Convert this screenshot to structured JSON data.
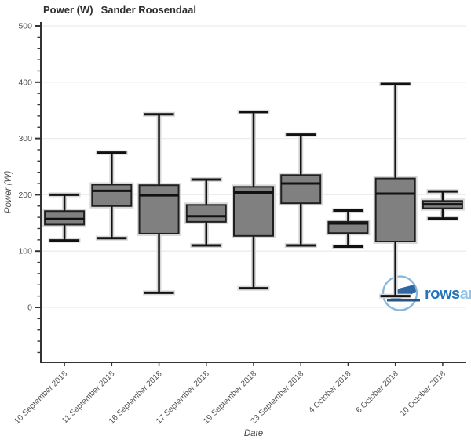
{
  "header": {
    "title_metric": "Power (W)",
    "title_name": "Sander Roosendaal"
  },
  "watermark": {
    "text_bold": "rows",
    "text_light": "an",
    "bold_color": "#1c6cb4",
    "light_color": "#8fc1e9",
    "ring_color": "#7fb3dd",
    "boat_color": "#235f9d",
    "keel_color": "#1b4a7a"
  },
  "chart_data": {
    "type": "box",
    "title": "Power (W)  Sander Roosendaal",
    "xlabel": "Date",
    "ylabel": "Power (W)",
    "ylim": [
      -97.5,
      507
    ],
    "yticks_major": [
      0,
      100,
      200,
      300,
      400,
      500
    ],
    "ytick_minor_step": 20,
    "grid": "horizontal-major",
    "legend": "none",
    "box_fill": "#808080",
    "box_border": "#1f1f1f",
    "whisker_color": "#111111",
    "halo_color": "#d8d8d8",
    "gridline_color": "#ececec",
    "spine_color": "#333333",
    "categories": [
      "10 September 2018",
      "11 September 2018",
      "16 September 2018",
      "17 September 2018",
      "19 September 2018",
      "23 September 2018",
      "4 October 2018",
      "6 October 2018",
      "10 October 2018"
    ],
    "series": [
      {
        "name": "Power (W)",
        "boxes": [
          {
            "low": 119,
            "q1": 147,
            "median": 157,
            "q3": 171,
            "high": 200
          },
          {
            "low": 123,
            "q1": 180,
            "median": 207,
            "q3": 218,
            "high": 275
          },
          {
            "low": 26,
            "q1": 131,
            "median": 199,
            "q3": 217,
            "high": 343
          },
          {
            "low": 110,
            "q1": 152,
            "median": 162,
            "q3": 182,
            "high": 227
          },
          {
            "low": 34,
            "q1": 127,
            "median": 204,
            "q3": 214,
            "high": 347
          },
          {
            "low": 110,
            "q1": 185,
            "median": 220,
            "q3": 235,
            "high": 307
          },
          {
            "low": 108,
            "q1": 132,
            "median": 149,
            "q3": 152,
            "high": 172
          },
          {
            "low": 20,
            "q1": 117,
            "median": 202,
            "q3": 229,
            "high": 397
          },
          {
            "low": 158,
            "q1": 176,
            "median": 183,
            "q3": 189,
            "high": 206
          }
        ]
      }
    ]
  }
}
